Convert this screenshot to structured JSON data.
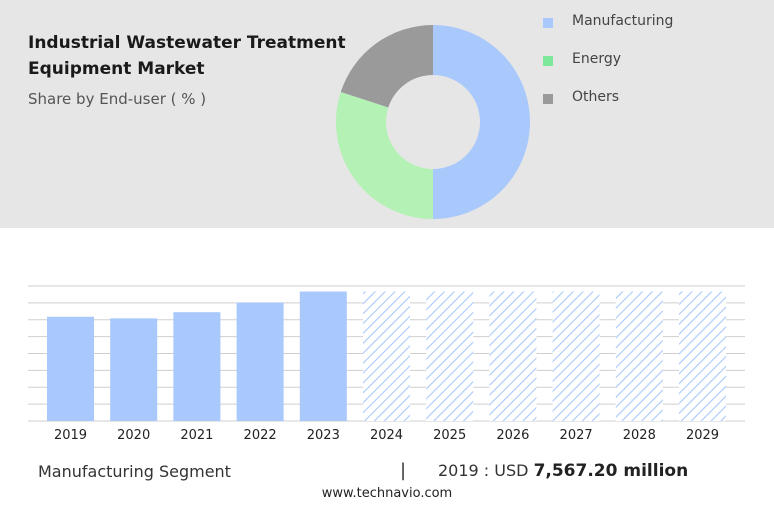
{
  "colors": {
    "manufacturing": "#a9c8fc",
    "energy": "#b4f1b4",
    "others": "#9a9a9a",
    "legend_manufacturing": "#a9c8fc",
    "legend_energy": "#7de89a",
    "legend_others": "#9a9a9a",
    "forecast_hatch": "#a9c8fc",
    "panel": "#e6e6e6"
  },
  "header": {
    "title_line1": "Industrial Wastewater Treatment",
    "title_line2": "Equipment Market",
    "subtitle": "Share by End-user ( % )"
  },
  "footer": {
    "segment": "Manufacturing Segment",
    "separator": "|",
    "year_label": "2019 : USD",
    "value": "7,567.20 million",
    "website": "www.technavio.com"
  },
  "chart_data": [
    {
      "type": "pie",
      "labels": [
        "Manufacturing",
        "Energy",
        "Others"
      ],
      "values": [
        50,
        30,
        20
      ],
      "hole": true,
      "legend_position": "right"
    },
    {
      "type": "bar",
      "categories": [
        "2019",
        "2020",
        "2021",
        "2022",
        "2023",
        "2024",
        "2025",
        "2026",
        "2027",
        "2028",
        "2029"
      ],
      "values": [
        7567.2,
        7450,
        7900,
        8600,
        9400,
        9400,
        9400,
        9400,
        9400,
        9400,
        9400
      ],
      "forecast_from": "2024",
      "ylim": [
        0,
        9800
      ],
      "grid": true
    }
  ]
}
